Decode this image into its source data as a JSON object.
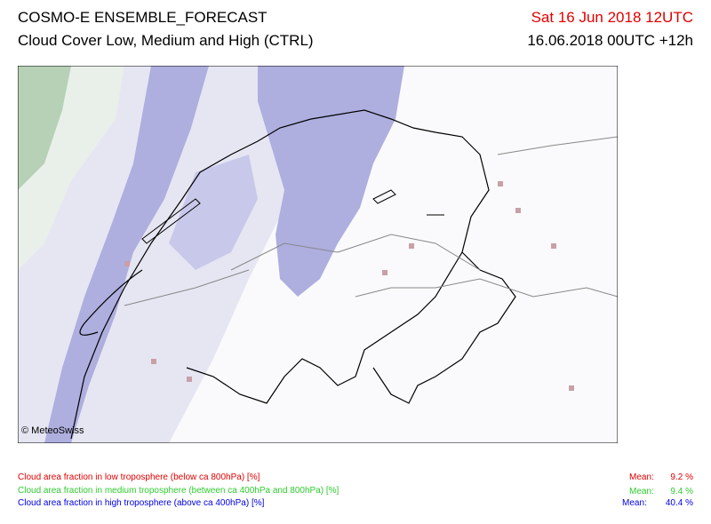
{
  "header": {
    "title": "COSMO-E ENSEMBLE_FORECAST",
    "subtitle": "Cloud Cover Low, Medium and High (CTRL)",
    "valid_time": "Sat 16 Jun 2018 12UTC",
    "run": "16.06.2018 00UTC +12h"
  },
  "map": {
    "credit": "© MeteoSwiss"
  },
  "legend": [
    {
      "label": "Cloud area fraction in low troposphere (below ca 800hPa) [%]",
      "mean_label": "Mean:",
      "mean": "9.2 %"
    },
    {
      "label": "Cloud area fraction in medium troposphere (between ca 400hPa and 800hPa) [%]",
      "mean_label": "Mean:",
      "mean": "9.4 %"
    },
    {
      "label": "Cloud area fraction in high troposphere (above ca 400hPa) [%]",
      "mean_label": "Mean:",
      "mean": "40.4 %"
    }
  ]
}
